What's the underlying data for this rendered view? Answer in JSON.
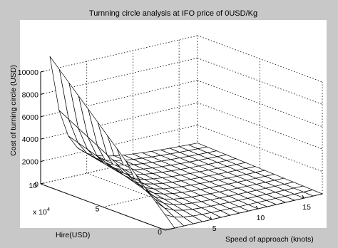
{
  "chart_data": {
    "type": "surface",
    "title": "Turnning circle analysis at IFO price of 0USD/Kg",
    "xlabel": "Speed of approach (knots)",
    "ylabel": "Hire(USD)",
    "zlabel": "Cost of turning circle (USD)",
    "y_multiplier": "x 10",
    "y_multiplier_exponent": "4",
    "xlim": [
      0,
      17
    ],
    "ylim": [
      0,
      10
    ],
    "zlim": [
      0,
      10000
    ],
    "x_ticks": [
      5,
      10,
      15
    ],
    "y_ticks": [
      0,
      5,
      10
    ],
    "z_ticks": [
      0,
      2000,
      4000,
      6000,
      8000,
      10000
    ],
    "grid": true,
    "background": "#c8c8c8",
    "panel_color": "#ffffff",
    "surface_color": "#ffffff",
    "edge_color": "#000000",
    "surface_note_speed_range": [
      1,
      17
    ],
    "surface_note_hire_range": [
      0,
      10
    ],
    "surface_peak_cost": 9000
  }
}
